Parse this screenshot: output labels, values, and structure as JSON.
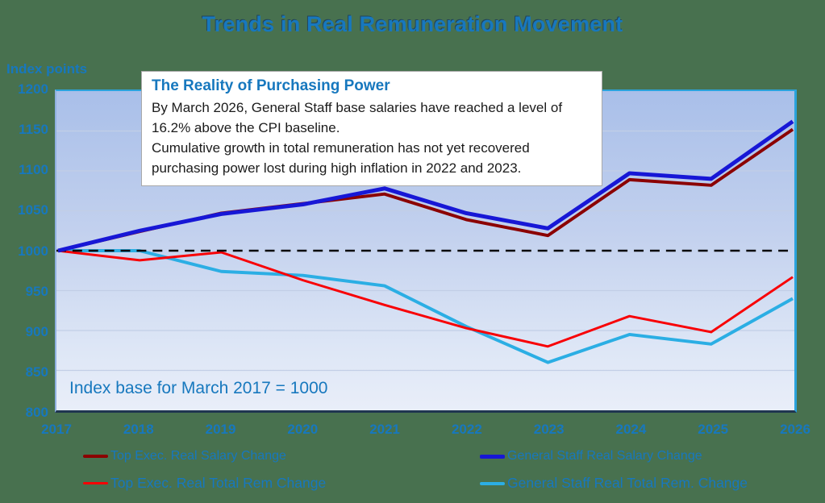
{
  "title": "Trends in Real Remuneration Movement",
  "y_axis_unit": "Index points",
  "annotation": {
    "title": "The Reality of Purchasing Power",
    "lines": [
      "By March 2026, General Staff base salaries have reached a level of",
      "16.2% above the CPI baseline.",
      "Cumulative growth in total remuneration has not yet recovered",
      "purchasing power lost during high inflation in 2022 and 2023."
    ]
  },
  "baseline_note": "Index base for March 2017 = 1000",
  "colors": {
    "background": "#48714f",
    "accent_text": "#1778BE",
    "plot_gradient_top": "#a9bfe9",
    "plot_gradient_bottom": "#e9eef9",
    "gridline": "#c2cee6",
    "baseline_dash": "#0a0a0a"
  },
  "chart_data": {
    "type": "line",
    "x": [
      2017,
      2018,
      2019,
      2020,
      2021,
      2022,
      2023,
      2024,
      2025,
      2026
    ],
    "xlabel": "",
    "ylabel": "Index points",
    "ylim": [
      800,
      1200
    ],
    "ytick_step": 50,
    "grid": true,
    "baseline_value": 1000,
    "legend_position": "bottom",
    "series": [
      {
        "name": "Top Exec. Real Salary Change",
        "color": "#8B0000",
        "stroke_width": 4,
        "values": [
          1000,
          1024,
          1047,
          1059,
          1071,
          1039,
          1019,
          1089,
          1082,
          1152
        ]
      },
      {
        "name": "General Staff Real Salary Change",
        "color": "#1717D6",
        "stroke_width": 5,
        "values": [
          1000,
          1025,
          1046,
          1058,
          1078,
          1047,
          1028,
          1097,
          1090,
          1162
        ]
      },
      {
        "name": "Top Exec. Real Total Rem Change",
        "color": "#F80005",
        "stroke_width": 3,
        "values": [
          1000,
          988,
          998,
          963,
          932,
          903,
          880,
          918,
          898,
          967
        ]
      },
      {
        "name": "General Staff Real Total Rem. Change",
        "color": "#2BAEE4",
        "stroke_width": 4,
        "values": [
          1000,
          1000,
          974,
          969,
          956,
          905,
          860,
          895,
          883,
          940
        ]
      }
    ]
  }
}
